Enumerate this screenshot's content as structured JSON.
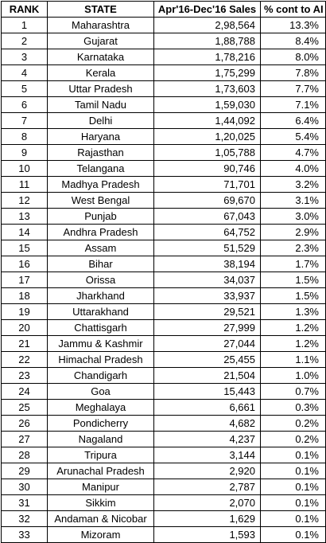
{
  "headers": {
    "rank": "RANK",
    "state": "STATE",
    "sales": "Apr'16-Dec'16 Sales",
    "pct": "% cont to AI"
  },
  "rows": [
    {
      "rank": "1",
      "state": "Maharashtra",
      "sales": "2,98,564",
      "pct": "13.3%"
    },
    {
      "rank": "2",
      "state": "Gujarat",
      "sales": "1,88,788",
      "pct": "8.4%"
    },
    {
      "rank": "3",
      "state": "Karnataka",
      "sales": "1,78,216",
      "pct": "8.0%"
    },
    {
      "rank": "4",
      "state": "Kerala",
      "sales": "1,75,299",
      "pct": "7.8%"
    },
    {
      "rank": "5",
      "state": "Uttar Pradesh",
      "sales": "1,73,603",
      "pct": "7.7%"
    },
    {
      "rank": "6",
      "state": "Tamil Nadu",
      "sales": "1,59,030",
      "pct": "7.1%"
    },
    {
      "rank": "7",
      "state": "Delhi",
      "sales": "1,44,092",
      "pct": "6.4%"
    },
    {
      "rank": "8",
      "state": "Haryana",
      "sales": "1,20,025",
      "pct": "5.4%"
    },
    {
      "rank": "9",
      "state": "Rajasthan",
      "sales": "1,05,788",
      "pct": "4.7%"
    },
    {
      "rank": "10",
      "state": "Telangana",
      "sales": "90,746",
      "pct": "4.0%"
    },
    {
      "rank": "11",
      "state": "Madhya Pradesh",
      "sales": "71,701",
      "pct": "3.2%"
    },
    {
      "rank": "12",
      "state": "West Bengal",
      "sales": "69,670",
      "pct": "3.1%"
    },
    {
      "rank": "13",
      "state": "Punjab",
      "sales": "67,043",
      "pct": "3.0%"
    },
    {
      "rank": "14",
      "state": "Andhra Pradesh",
      "sales": "64,752",
      "pct": "2.9%"
    },
    {
      "rank": "15",
      "state": "Assam",
      "sales": "51,529",
      "pct": "2.3%"
    },
    {
      "rank": "16",
      "state": "Bihar",
      "sales": "38,194",
      "pct": "1.7%"
    },
    {
      "rank": "17",
      "state": "Orissa",
      "sales": "34,037",
      "pct": "1.5%"
    },
    {
      "rank": "18",
      "state": "Jharkhand",
      "sales": "33,937",
      "pct": "1.5%"
    },
    {
      "rank": "19",
      "state": "Uttarakhand",
      "sales": "29,521",
      "pct": "1.3%"
    },
    {
      "rank": "20",
      "state": "Chattisgarh",
      "sales": "27,999",
      "pct": "1.2%"
    },
    {
      "rank": "21",
      "state": "Jammu & Kashmir",
      "sales": "27,044",
      "pct": "1.2%"
    },
    {
      "rank": "22",
      "state": "Himachal Pradesh",
      "sales": "25,455",
      "pct": "1.1%"
    },
    {
      "rank": "23",
      "state": "Chandigarh",
      "sales": "21,504",
      "pct": "1.0%"
    },
    {
      "rank": "24",
      "state": "Goa",
      "sales": "15,443",
      "pct": "0.7%"
    },
    {
      "rank": "25",
      "state": "Meghalaya",
      "sales": "6,661",
      "pct": "0.3%"
    },
    {
      "rank": "26",
      "state": "Pondicherry",
      "sales": "4,682",
      "pct": "0.2%"
    },
    {
      "rank": "27",
      "state": "Nagaland",
      "sales": "4,237",
      "pct": "0.2%"
    },
    {
      "rank": "28",
      "state": "Tripura",
      "sales": "3,144",
      "pct": "0.1%"
    },
    {
      "rank": "29",
      "state": "Arunachal Pradesh",
      "sales": "2,920",
      "pct": "0.1%"
    },
    {
      "rank": "30",
      "state": "Manipur",
      "sales": "2,787",
      "pct": "0.1%"
    },
    {
      "rank": "31",
      "state": "Sikkim",
      "sales": "2,070",
      "pct": "0.1%"
    },
    {
      "rank": "32",
      "state": "Andaman & Nicobar",
      "sales": "1,629",
      "pct": "0.1%"
    },
    {
      "rank": "33",
      "state": "Mizoram",
      "sales": "1,593",
      "pct": "0.1%"
    }
  ]
}
